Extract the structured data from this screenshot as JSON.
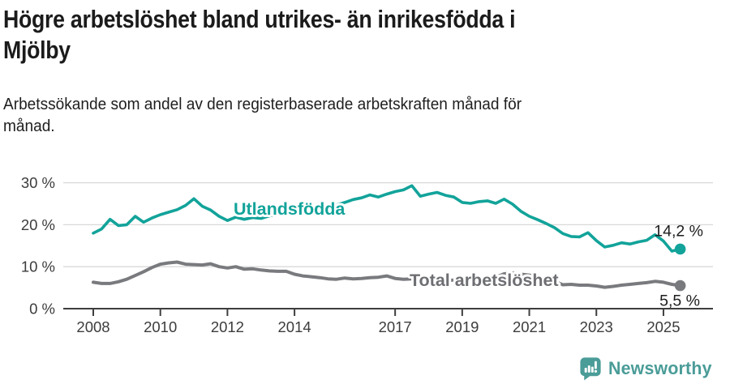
{
  "header": {
    "title": "Högre arbetslöshet bland utrikes- än inrikesfödda i\nMjölby",
    "subtitle": "Arbetssökande som andel av den registerbaserade arbetskraften månad för\nmånad."
  },
  "footer": {
    "brand": "Newsworthy",
    "logo_icon": "newsworthy-speech-bubble-bar-chart-icon"
  },
  "colors": {
    "series_foreign_born": "#12a39a",
    "series_total": "#797a7e",
    "series_total_label": "#6e6f73",
    "axis_line": "#3e3e3e",
    "axis_text": "#3c3c3c",
    "gridline": "#d9d9d9",
    "value_label_text": "#1d1d1d",
    "brand_teal": "#4a9c98",
    "background": "#ffffff"
  },
  "chart_data": {
    "type": "line",
    "title": "Högre arbetslöshet bland utrikes- än inrikesfödda i Mjölby",
    "subtitle": "Arbetssökande som andel av den registerbaserade arbetskraften månad för månad.",
    "unit": "%",
    "grid": "horizontal",
    "legend": "inline-labels",
    "x_axis": {
      "tick_years": [
        2008,
        2010,
        2012,
        2014,
        2017,
        2019,
        2021,
        2023,
        2025
      ],
      "tick_labels": [
        "2008",
        "2010",
        "2012",
        "2014",
        "2017",
        "2019",
        "2021",
        "2023",
        "2025"
      ]
    },
    "y_axis": {
      "tick_values": [
        0,
        10,
        20,
        30
      ],
      "tick_labels": [
        "0 %",
        "10 %",
        "20 %",
        "30 %"
      ],
      "ylim": [
        0,
        32
      ]
    },
    "sampling": {
      "start_year": 2008.0,
      "interval_years": 0.25,
      "end_year": 2025.5
    },
    "series": [
      {
        "name": "Utlandsfödda",
        "color": "#12a39a",
        "end_value": 14.2,
        "end_label": "14,2 %",
        "values": [
          18.0,
          19.0,
          21.3,
          19.8,
          20.0,
          22.0,
          20.6,
          21.6,
          22.4,
          23.0,
          23.6,
          24.6,
          26.2,
          24.4,
          23.5,
          22.0,
          21.0,
          21.8,
          21.3,
          21.7,
          21.5,
          22.1,
          22.4,
          22.3,
          22.7,
          23.1,
          23.5,
          23.9,
          24.3,
          24.7,
          25.3,
          26.0,
          26.4,
          27.1,
          26.6,
          27.3,
          27.9,
          28.3,
          29.3,
          26.8,
          27.3,
          27.7,
          27.0,
          26.6,
          25.3,
          25.1,
          25.5,
          25.7,
          25.1,
          26.1,
          24.9,
          23.2,
          22.0,
          21.2,
          20.3,
          19.3,
          17.9,
          17.2,
          17.1,
          18.1,
          16.2,
          14.7,
          15.1,
          15.7,
          15.4,
          15.9,
          16.3,
          17.6,
          16.1,
          13.7,
          14.2
        ]
      },
      {
        "name": "Total arbetslöshet",
        "color": "#797a7e",
        "end_value": 5.5,
        "end_label": "5,5 %",
        "values": [
          6.3,
          6.0,
          6.0,
          6.4,
          7.0,
          7.9,
          8.8,
          9.8,
          10.6,
          10.9,
          11.1,
          10.6,
          10.5,
          10.4,
          10.7,
          10.0,
          9.7,
          10.0,
          9.4,
          9.5,
          9.2,
          9.0,
          8.9,
          8.9,
          8.2,
          7.8,
          7.6,
          7.4,
          7.1,
          7.0,
          7.3,
          7.1,
          7.2,
          7.4,
          7.5,
          7.8,
          7.2,
          7.0,
          7.1,
          7.3,
          7.0,
          6.8,
          6.7,
          6.8,
          6.9,
          7.0,
          7.1,
          7.2,
          7.5,
          8.3,
          8.5,
          8.2,
          8.0,
          7.5,
          7.0,
          6.5,
          5.7,
          5.8,
          5.6,
          5.6,
          5.4,
          5.1,
          5.3,
          5.6,
          5.8,
          6.0,
          6.2,
          6.5,
          6.3,
          5.8,
          5.5
        ]
      }
    ]
  }
}
